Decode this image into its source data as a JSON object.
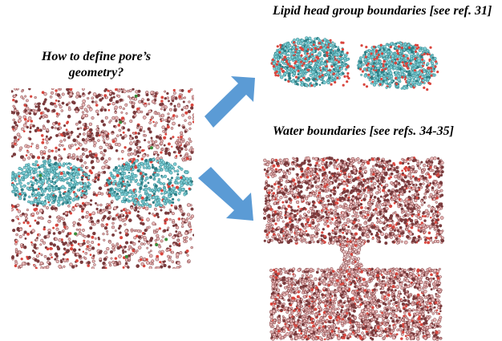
{
  "question": {
    "line1": "How to define pore’s",
    "line2": "geometry?"
  },
  "labels": {
    "lipid": "Lipid head group boundaries [see ref. 31]",
    "water": "Water boundaries [see refs. 34-35]"
  },
  "colors": {
    "water": "#e8b7b7",
    "water_dark": "#7a3b3d",
    "water_light": "#f3d2d2",
    "lipid": "#7fcfd6",
    "lipid_dark": "#2f7f86",
    "oxygen": "#d9463e",
    "nitrogen": "#3a8f3a",
    "arrow": "#5b9bd5"
  },
  "icons": {
    "arrow_up": "arrow-up-right-icon",
    "arrow_down": "arrow-down-right-icon"
  }
}
